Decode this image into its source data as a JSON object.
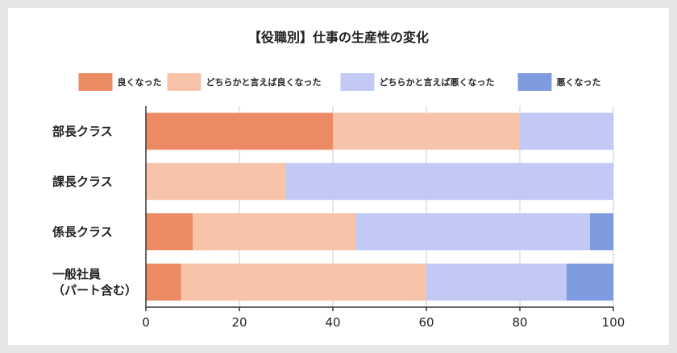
{
  "chart_data": {
    "type": "bar",
    "orientation": "horizontal",
    "stacked": true,
    "title": "【役職別】仕事の生産性の変化",
    "legend_position": "top",
    "categories": [
      "部長クラス",
      "課長クラス",
      "係長クラス",
      "一般社員\n（パート含む）"
    ],
    "series": [
      {
        "name": "良くなった",
        "color": "#ec8a64",
        "values": [
          40,
          0,
          10,
          7.5
        ]
      },
      {
        "name": "どちらかと言えば良くなった",
        "color": "#f7c4aa",
        "values": [
          40,
          30,
          35,
          52.5
        ]
      },
      {
        "name": "どちらかと言えば悪くなった",
        "color": "#c2c9f5",
        "values": [
          20,
          70,
          50,
          30
        ]
      },
      {
        "name": "悪くなった",
        "color": "#7f9be0",
        "values": [
          0,
          0,
          5,
          10
        ]
      }
    ],
    "xlim": [
      0,
      100
    ],
    "xticks": [
      0,
      20,
      40,
      60,
      80,
      100
    ],
    "grid": "vertical"
  }
}
